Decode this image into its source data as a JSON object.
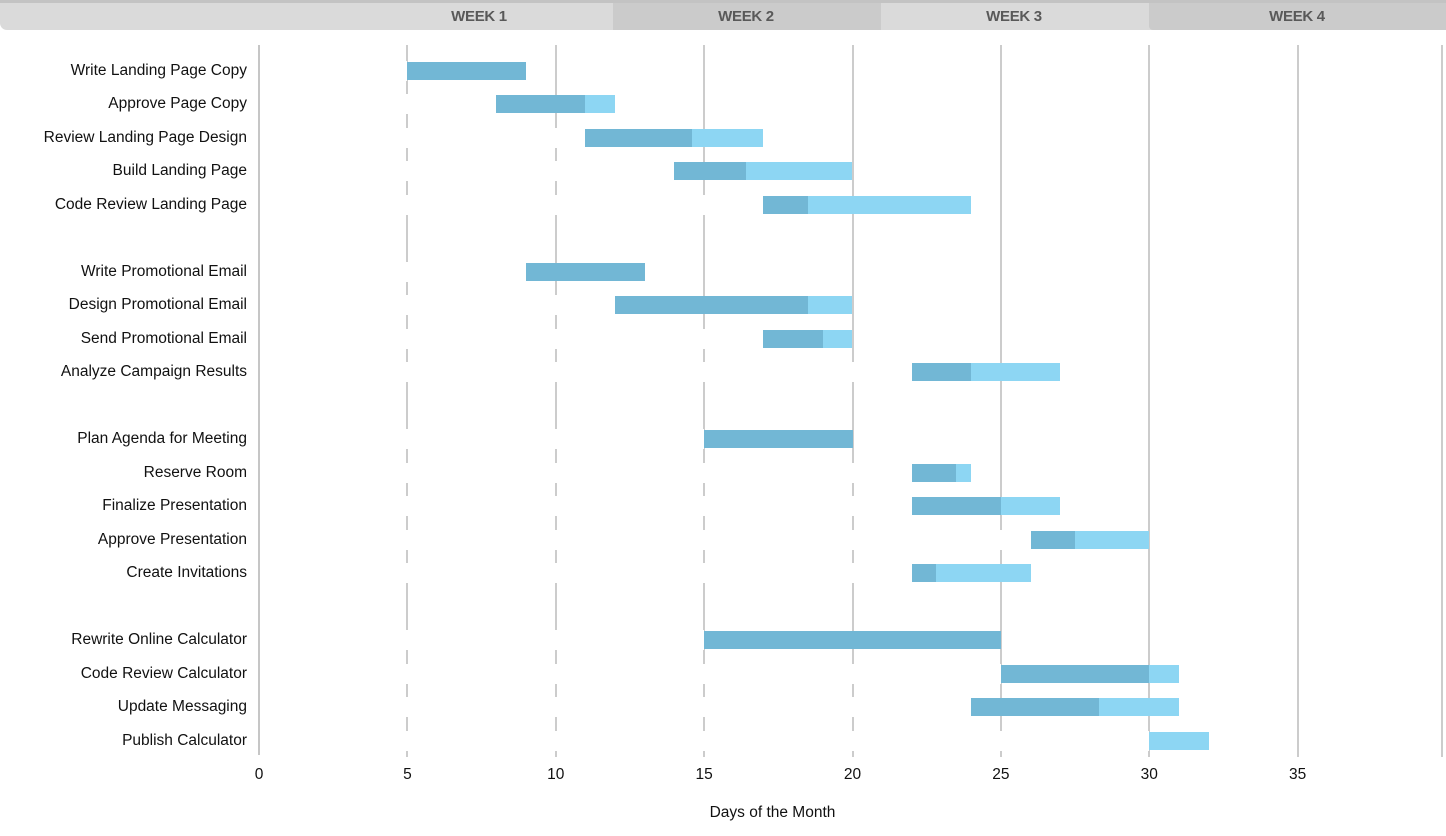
{
  "header": {
    "weeks": [
      {
        "label": "WEEK 1"
      },
      {
        "label": "WEEK 2"
      },
      {
        "label": "WEEK 3"
      },
      {
        "label": "WEEK 4"
      }
    ]
  },
  "axis": {
    "title": "Days of the Month",
    "ticks": [
      "0",
      "5",
      "10",
      "15",
      "20",
      "25",
      "30",
      "35"
    ]
  },
  "colors": {
    "bar_complete": "#72b7d5",
    "bar_remaining": "#8dd6f3",
    "gridline": "#cccccc",
    "header_bg": "#dadada",
    "header_band": "#cbcbcb",
    "header_text": "#595959",
    "label_text": "#111111"
  },
  "chart_data": {
    "type": "gantt",
    "title": "",
    "xlabel": "Days of the Month",
    "xlim": [
      0,
      40
    ],
    "tick_interval": 5,
    "grid": true,
    "week_bands": [
      "WEEK 1",
      "WEEK 2",
      "WEEK 3",
      "WEEK 4"
    ],
    "bar_value_meaning": "start day, completed-through day (dark blue), end day (light blue)",
    "tasks": [
      {
        "name": "Write Landing Page Copy",
        "group": 0,
        "start": 5,
        "complete_until": 9,
        "end": 9
      },
      {
        "name": "Approve Page Copy",
        "group": 0,
        "start": 8,
        "complete_until": 11,
        "end": 12
      },
      {
        "name": "Review Landing Page Design",
        "group": 0,
        "start": 11,
        "complete_until": 14.6,
        "end": 17
      },
      {
        "name": "Build Landing Page",
        "group": 0,
        "start": 14,
        "complete_until": 16.4,
        "end": 20
      },
      {
        "name": "Code Review Landing Page",
        "group": 0,
        "start": 17,
        "complete_until": 18.5,
        "end": 24
      },
      {
        "name": "Write Promotional Email",
        "group": 1,
        "start": 9,
        "complete_until": 13,
        "end": 13
      },
      {
        "name": "Design Promotional Email",
        "group": 1,
        "start": 12,
        "complete_until": 18.5,
        "end": 20
      },
      {
        "name": "Send Promotional Email",
        "group": 1,
        "start": 17,
        "complete_until": 19,
        "end": 20
      },
      {
        "name": "Analyze Campaign Results",
        "group": 1,
        "start": 22,
        "complete_until": 24,
        "end": 27
      },
      {
        "name": "Plan Agenda for Meeting",
        "group": 2,
        "start": 15,
        "complete_until": 20,
        "end": 20
      },
      {
        "name": "Reserve Room",
        "group": 2,
        "start": 22,
        "complete_until": 23.5,
        "end": 24
      },
      {
        "name": "Finalize Presentation",
        "group": 2,
        "start": 22,
        "complete_until": 25,
        "end": 27
      },
      {
        "name": "Approve Presentation",
        "group": 2,
        "start": 26,
        "complete_until": 27.5,
        "end": 30
      },
      {
        "name": "Create Invitations",
        "group": 2,
        "start": 22,
        "complete_until": 22.8,
        "end": 26
      },
      {
        "name": "Rewrite Online Calculator",
        "group": 3,
        "start": 15,
        "complete_until": 25,
        "end": 25
      },
      {
        "name": "Code Review Calculator",
        "group": 3,
        "start": 25,
        "complete_until": 30,
        "end": 31
      },
      {
        "name": "Update Messaging",
        "group": 3,
        "start": 24,
        "complete_until": 28.3,
        "end": 31
      },
      {
        "name": "Publish Calculator",
        "group": 3,
        "start": 30,
        "complete_until": 30,
        "end": 32
      }
    ]
  }
}
